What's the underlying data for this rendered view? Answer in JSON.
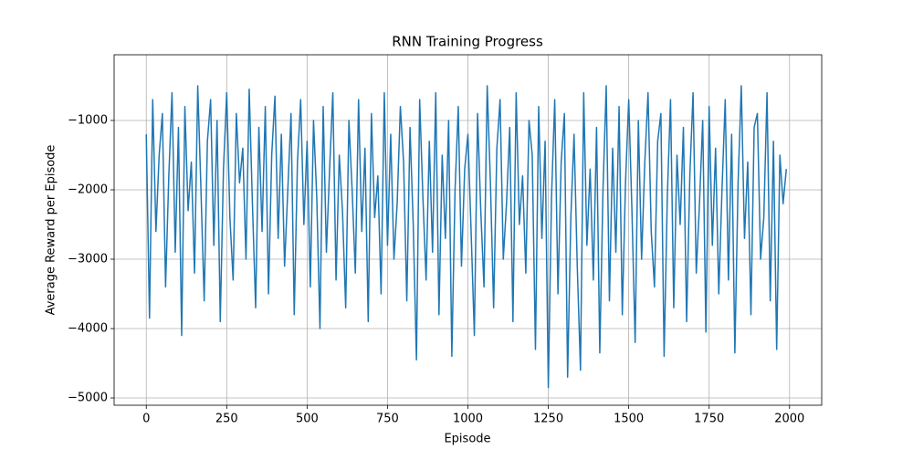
{
  "chart_data": {
    "type": "line",
    "title": "RNN Training Progress",
    "xlabel": "Episode",
    "ylabel": "Average Reward per Episode",
    "x": [
      0,
      10,
      20,
      30,
      40,
      50,
      60,
      70,
      80,
      90,
      100,
      110,
      120,
      130,
      140,
      150,
      160,
      170,
      180,
      190,
      200,
      210,
      220,
      230,
      240,
      250,
      260,
      270,
      280,
      290,
      300,
      310,
      320,
      330,
      340,
      350,
      360,
      370,
      380,
      390,
      400,
      410,
      420,
      430,
      440,
      450,
      460,
      470,
      480,
      490,
      500,
      510,
      520,
      530,
      540,
      550,
      560,
      570,
      580,
      590,
      600,
      610,
      620,
      630,
      640,
      650,
      660,
      670,
      680,
      690,
      700,
      710,
      720,
      730,
      740,
      750,
      760,
      770,
      780,
      790,
      800,
      810,
      820,
      830,
      840,
      850,
      860,
      870,
      880,
      890,
      900,
      910,
      920,
      930,
      940,
      950,
      960,
      970,
      980,
      990,
      1000,
      1010,
      1020,
      1030,
      1040,
      1050,
      1060,
      1070,
      1080,
      1090,
      1100,
      1110,
      1120,
      1130,
      1140,
      1150,
      1160,
      1170,
      1180,
      1190,
      1200,
      1210,
      1220,
      1230,
      1240,
      1250,
      1260,
      1270,
      1280,
      1290,
      1300,
      1310,
      1320,
      1330,
      1340,
      1350,
      1360,
      1370,
      1380,
      1390,
      1400,
      1410,
      1420,
      1430,
      1440,
      1450,
      1460,
      1470,
      1480,
      1490,
      1500,
      1510,
      1520,
      1530,
      1540,
      1550,
      1560,
      1570,
      1580,
      1590,
      1600,
      1610,
      1620,
      1630,
      1640,
      1650,
      1660,
      1670,
      1680,
      1690,
      1700,
      1710,
      1720,
      1730,
      1740,
      1750,
      1760,
      1770,
      1780,
      1790,
      1800,
      1810,
      1820,
      1830,
      1840,
      1850,
      1860,
      1870,
      1880,
      1890,
      1900,
      1910,
      1920,
      1930,
      1940,
      1950,
      1960,
      1970,
      1980,
      1990
    ],
    "series": [
      {
        "name": "Average Reward",
        "color": "#1f77b4",
        "values": [
          -1200,
          -3850,
          -700,
          -2600,
          -1500,
          -900,
          -3400,
          -1800,
          -600,
          -2900,
          -1100,
          -4100,
          -800,
          -2300,
          -1600,
          -3200,
          -500,
          -2000,
          -3600,
          -1300,
          -700,
          -2800,
          -1000,
          -3900,
          -1700,
          -600,
          -2400,
          -3300,
          -900,
          -1900,
          -1400,
          -3000,
          -550,
          -2200,
          -3700,
          -1100,
          -2600,
          -800,
          -3500,
          -1500,
          -650,
          -2700,
          -1200,
          -3100,
          -2000,
          -900,
          -3800,
          -1600,
          -700,
          -2500,
          -1300,
          -3400,
          -1000,
          -2100,
          -4000,
          -800,
          -2900,
          -1700,
          -600,
          -3300,
          -1500,
          -2300,
          -3700,
          -1000,
          -2000,
          -3200,
          -700,
          -2600,
          -1400,
          -3900,
          -900,
          -2400,
          -1800,
          -3500,
          -600,
          -2800,
          -1200,
          -3000,
          -2200,
          -800,
          -1600,
          -3600,
          -1100,
          -2500,
          -4450,
          -700,
          -2100,
          -3300,
          -1300,
          -2900,
          -600,
          -3800,
          -1500,
          -2700,
          -1000,
          -4400,
          -2000,
          -800,
          -3100,
          -1700,
          -1200,
          -2600,
          -4100,
          -900,
          -2300,
          -3400,
          -500,
          -1900,
          -3700,
          -1400,
          -700,
          -3000,
          -2200,
          -1100,
          -3900,
          -600,
          -2500,
          -1800,
          -3200,
          -1000,
          -1500,
          -4300,
          -800,
          -2700,
          -1300,
          -4850,
          -2100,
          -700,
          -3500,
          -1600,
          -900,
          -4700,
          -2400,
          -1200,
          -3100,
          -4600,
          -600,
          -2800,
          -1700,
          -3300,
          -1100,
          -4350,
          -2000,
          -500,
          -3600,
          -1400,
          -2900,
          -800,
          -3800,
          -1900,
          -700,
          -2300,
          -4200,
          -1000,
          -3000,
          -1600,
          -600,
          -2600,
          -3400,
          -1300,
          -900,
          -4400,
          -2100,
          -700,
          -3700,
          -1500,
          -2500,
          -1100,
          -3900,
          -1800,
          -600,
          -3200,
          -2200,
          -1000,
          -4050,
          -800,
          -2800,
          -1400,
          -3500,
          -2000,
          -700,
          -3300,
          -1200,
          -4350,
          -1900,
          -500,
          -2700,
          -1600,
          -3800,
          -1100,
          -900,
          -3000,
          -2400,
          -600,
          -3600,
          -1300,
          -4300,
          -1500,
          -2200,
          -1700
        ]
      }
    ],
    "xlim": [
      -100,
      2100
    ],
    "ylim": [
      -5105,
      -53
    ],
    "xticks": [
      0,
      250,
      500,
      750,
      1000,
      1250,
      1500,
      1750,
      2000
    ],
    "yticks": [
      {
        "value": -5000,
        "label": "−5000"
      },
      {
        "value": -4000,
        "label": "−4000"
      },
      {
        "value": -3000,
        "label": "−3000"
      },
      {
        "value": -2000,
        "label": "−2000"
      },
      {
        "value": -1000,
        "label": "−1000"
      }
    ],
    "grid": true
  }
}
